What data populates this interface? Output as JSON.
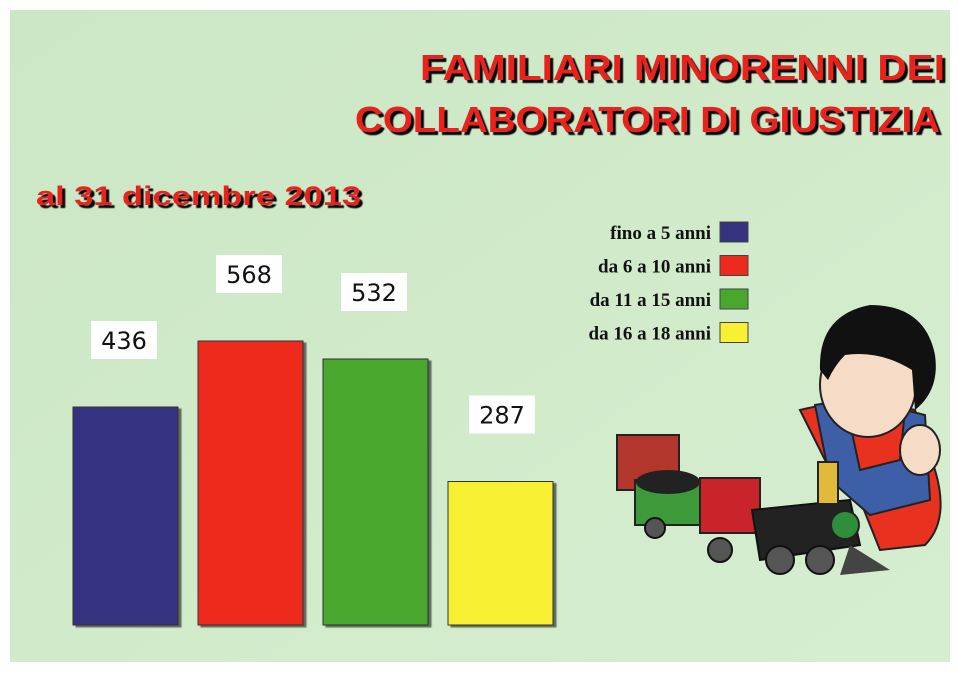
{
  "chart_data": {
    "type": "bar",
    "title": [
      "FAMILIARI  MINORENNI DEI",
      "COLLABORATORI DI GIUSTIZIA"
    ],
    "subtitle": "al 31 dicembre 2013",
    "series": [
      {
        "name": "fino a 5 anni",
        "color": "#35327f",
        "values": [
          436
        ]
      },
      {
        "name": "da 6 a 10 anni",
        "color": "#ee2a1e",
        "values": [
          568
        ]
      },
      {
        "name": "da 11 a 15 anni",
        "color": "#4aa72e",
        "values": [
          532
        ]
      },
      {
        "name": "da 16 a 18 anni",
        "color": "#f7f033",
        "values": [
          287
        ]
      }
    ]
  }
}
